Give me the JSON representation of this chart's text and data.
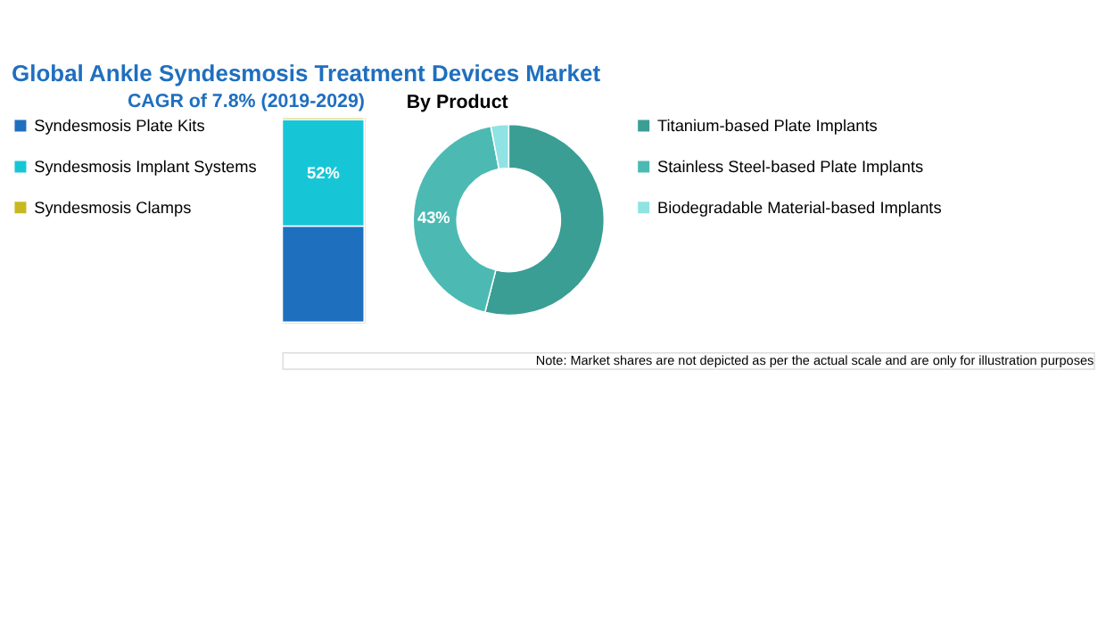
{
  "chart_data": [
    {
      "type": "bar",
      "stacked": true,
      "title": "Global Ankle Syndesmosis Treatment Devices Market",
      "categories": [
        null
      ],
      "legend": "left",
      "series": [
        {
          "name": "Syndesmosis Plate Kits",
          "color": "#1f6fbf",
          "values": [
            47
          ],
          "value_labels": [
            null
          ]
        },
        {
          "name": "Syndesmosis Implant Systems",
          "color": "#17c6d6",
          "values": [
            52
          ],
          "value_labels": [
            "52%"
          ]
        },
        {
          "name": "Syndesmosis Clamps",
          "color": "#c8b820",
          "values": [
            1
          ],
          "value_labels": [
            null
          ]
        }
      ],
      "annotations": [
        "CAGR of 7.8% (2019-2029)",
        "Note: Market shares are not depicted as per the actual scale and are only for illustration purposes"
      ]
    },
    {
      "type": "donut",
      "legend": "right",
      "categories": [
        "Titanium-based Plate Implants",
        "Stainless Steel-based Plate Implants",
        "Biodegradable Material-based Implants"
      ],
      "values": [
        54,
        43,
        3
      ],
      "colors": [
        "#3a9e94",
        "#4cbab3",
        "#8fe3e3"
      ],
      "value_labels": [
        null,
        "43%",
        null
      ],
      "annotations": [
        "By Product"
      ]
    }
  ]
}
